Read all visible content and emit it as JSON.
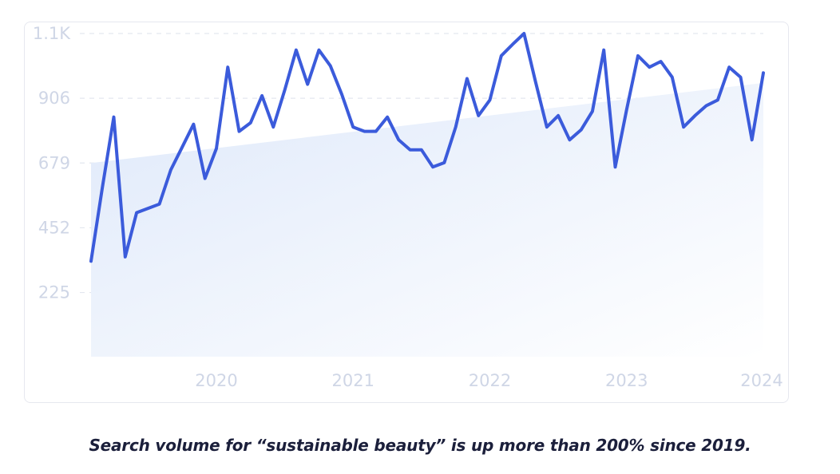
{
  "caption": "Search volume for “sustainable beauty” is up more than 200% since 2019.",
  "colors": {
    "line": "#3b5bdb",
    "area_start": "#dfe9fa",
    "area_end": "#ffffff",
    "grid": "#e3e7ef",
    "tick": "#cfd6e6",
    "card_border": "#e6e8ef"
  },
  "chart_data": {
    "type": "line",
    "title": "",
    "xlabel": "",
    "ylabel": "",
    "grid": true,
    "legend": "none",
    "ylim": [
      0,
      1133
    ],
    "xlim": [
      "2019-02",
      "2024-01"
    ],
    "y_ticks": [
      {
        "value": 225,
        "label": "225"
      },
      {
        "value": 452,
        "label": "452"
      },
      {
        "value": 679,
        "label": "679"
      },
      {
        "value": 906,
        "label": "906"
      },
      {
        "value": 1133,
        "label": "1.1K"
      }
    ],
    "x_ticks": [
      {
        "value": "2020-01",
        "label": "2020"
      },
      {
        "value": "2021-01",
        "label": "2021"
      },
      {
        "value": "2022-01",
        "label": "2022"
      },
      {
        "value": "2023-01",
        "label": "2023"
      },
      {
        "value": "2024-01",
        "label": "2024"
      }
    ],
    "trend": {
      "start": {
        "x": "2019-02",
        "y": 679
      },
      "end": {
        "x": "2024-01",
        "y": 960
      }
    },
    "series": [
      {
        "x": [
          "2019-02",
          "2019-03",
          "2019-04",
          "2019-05",
          "2019-06",
          "2019-07",
          "2019-08",
          "2019-09",
          "2019-10",
          "2019-11",
          "2019-12",
          "2020-01",
          "2020-02",
          "2020-03",
          "2020-04",
          "2020-05",
          "2020-06",
          "2020-07",
          "2020-08",
          "2020-09",
          "2020-10",
          "2020-11",
          "2020-12",
          "2021-01",
          "2021-02",
          "2021-03",
          "2021-04",
          "2021-05",
          "2021-06",
          "2021-07",
          "2021-08",
          "2021-09",
          "2021-10",
          "2021-11",
          "2021-12",
          "2022-01",
          "2022-02",
          "2022-03",
          "2022-04",
          "2022-05",
          "2022-06",
          "2022-07",
          "2022-08",
          "2022-09",
          "2022-10",
          "2022-11",
          "2022-12",
          "2023-01",
          "2023-02",
          "2023-03",
          "2023-04",
          "2023-05",
          "2023-06",
          "2023-07",
          "2023-08",
          "2023-09",
          "2023-10",
          "2023-11",
          "2023-12",
          "2024-01"
        ],
        "values": [
          335,
          595,
          840,
          350,
          505,
          520,
          535,
          655,
          735,
          815,
          625,
          730,
          1015,
          790,
          820,
          915,
          805,
          935,
          1075,
          955,
          1075,
          1020,
          920,
          805,
          790,
          790,
          840,
          760,
          725,
          725,
          665,
          680,
          805,
          975,
          845,
          900,
          1055,
          1095,
          1133,
          965,
          805,
          845,
          760,
          795,
          860,
          1075,
          665,
          865,
          1055,
          1015,
          1035,
          980,
          805,
          845,
          880,
          900,
          1015,
          980,
          760,
          995
        ]
      }
    ]
  }
}
